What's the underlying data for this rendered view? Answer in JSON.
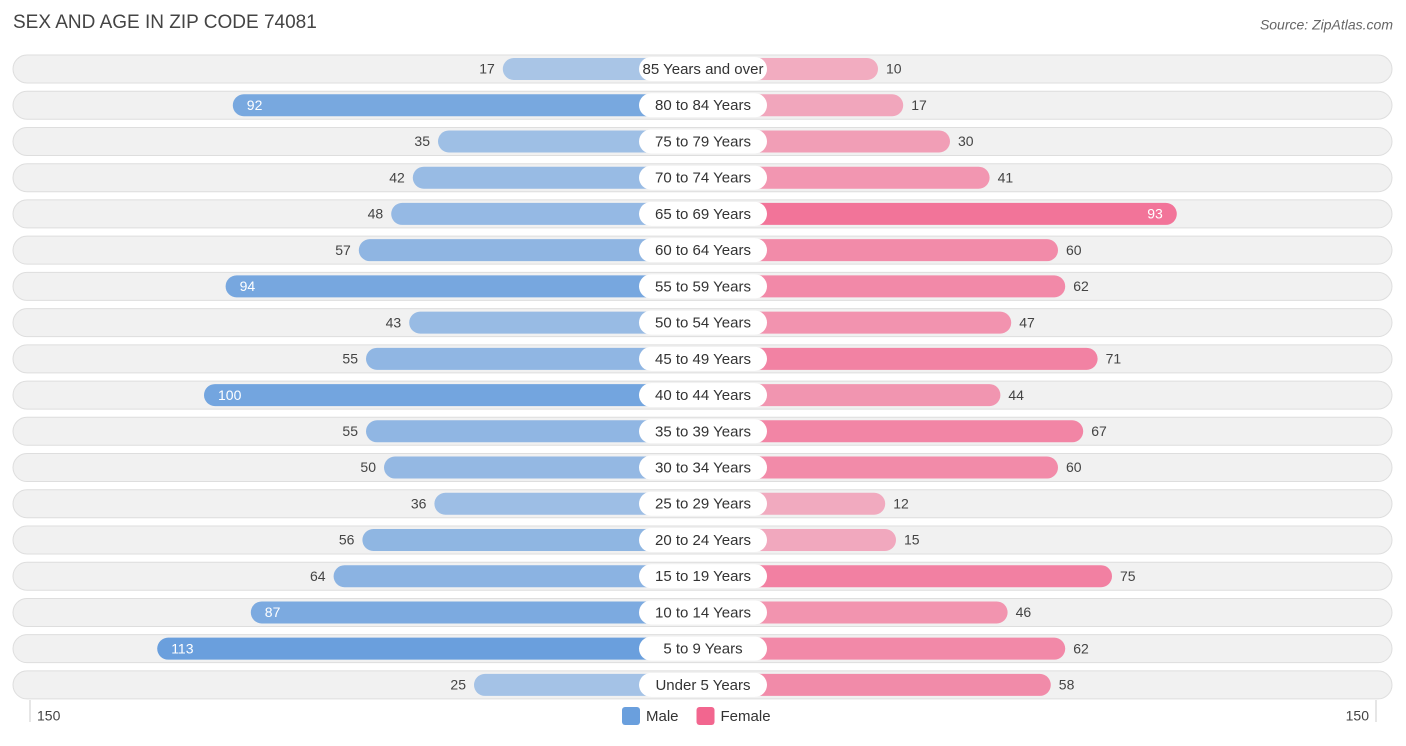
{
  "chart_data": {
    "type": "diverging-bar",
    "title": "SEX AND AGE IN ZIP CODE 74081",
    "source": "Source: ZipAtlas.com",
    "categories": [
      "85 Years and over",
      "80 to 84 Years",
      "75 to 79 Years",
      "70 to 74 Years",
      "65 to 69 Years",
      "60 to 64 Years",
      "55 to 59 Years",
      "50 to 54 Years",
      "45 to 49 Years",
      "40 to 44 Years",
      "35 to 39 Years",
      "30 to 34 Years",
      "25 to 29 Years",
      "20 to 24 Years",
      "15 to 19 Years",
      "10 to 14 Years",
      "5 to 9 Years",
      "Under 5 Years"
    ],
    "series": [
      {
        "name": "Male",
        "color": "#6a9fdd",
        "values": [
          17,
          92,
          35,
          42,
          48,
          57,
          94,
          43,
          55,
          100,
          55,
          50,
          36,
          56,
          64,
          87,
          113,
          25
        ]
      },
      {
        "name": "Female",
        "color": "#f2668f",
        "values": [
          10,
          17,
          30,
          41,
          93,
          60,
          62,
          47,
          71,
          44,
          67,
          60,
          12,
          15,
          75,
          46,
          62,
          58
        ]
      }
    ],
    "xlim": [
      -150,
      150
    ],
    "xticks": [
      {
        "value": -150,
        "label": "150"
      },
      {
        "value": 150,
        "label": "150"
      }
    ],
    "legend": "bottom"
  }
}
